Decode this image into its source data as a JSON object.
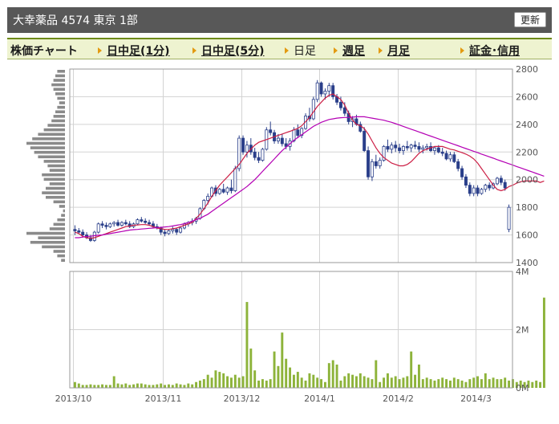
{
  "header": {
    "title": "大幸薬品 4574 東京 1部",
    "refresh_label": "更新"
  },
  "menu": {
    "label": "株価チャート",
    "items": [
      {
        "label": "日中足(1分)",
        "link": true
      },
      {
        "label": "日中足(5分)",
        "link": true
      },
      {
        "label": "日足",
        "link": false
      },
      {
        "label": "週足",
        "link": true
      },
      {
        "label": "月足",
        "link": true
      },
      {
        "label": "証金･信用",
        "link": true
      }
    ]
  },
  "colors": {
    "up": "#ffffff",
    "down": "#2a3f8a",
    "ma_short": "#cc1f45",
    "ma_long": "#b400b4",
    "volume": "#8db33a",
    "grid": "#d3d3d3"
  },
  "chart_data": [
    {
      "type": "candlestick",
      "yticks": [
        1400,
        1600,
        1800,
        2000,
        2200,
        2400,
        2600,
        2800
      ],
      "ylim": [
        1400,
        2800
      ],
      "xticks": [
        {
          "label": "2013/10",
          "index": 0
        },
        {
          "label": "2013/11",
          "index": 23
        },
        {
          "label": "2013/12",
          "index": 43
        },
        {
          "label": "2014/1",
          "index": 63
        },
        {
          "label": "2014/2",
          "index": 83
        },
        {
          "label": "2014/3",
          "index": 103
        }
      ],
      "grid": true,
      "series": [
        {
          "name": "",
          "type": "line",
          "values": [
            1620,
            1610,
            1590,
            1580,
            1575,
            1580,
            1590,
            1600,
            1610,
            1620,
            1630,
            1640,
            1650,
            1660,
            1665,
            1670,
            1672,
            1675,
            1675,
            1670,
            1660,
            1650,
            1645,
            1640,
            1640,
            1645,
            1650,
            1660,
            1670,
            1680,
            1690,
            1720,
            1750,
            1790,
            1830,
            1880,
            1920,
            1960,
            1990,
            2020,
            2050,
            2080,
            2110,
            2150,
            2190,
            2220,
            2250,
            2270,
            2280,
            2290,
            2300,
            2310,
            2320,
            2330,
            2340,
            2350,
            2360,
            2370,
            2390,
            2420,
            2450,
            2490,
            2530,
            2560,
            2590,
            2610,
            2620,
            2600,
            2580,
            2540,
            2480,
            2430,
            2400,
            2390,
            2370,
            2330,
            2280,
            2230,
            2190,
            2160,
            2140,
            2120,
            2110,
            2100,
            2100,
            2110,
            2130,
            2160,
            2190,
            2210,
            2220,
            2230,
            2240,
            2240,
            2240,
            2230,
            2220,
            2215,
            2205,
            2195,
            2185,
            2170,
            2150,
            2120,
            2080,
            2040,
            2000,
            1960,
            1930,
            1920,
            1930,
            1950,
            1960,
            1975,
            1985,
            1990,
            1990,
            1990,
            1990,
            1980,
            1990
          ]
        },
        {
          "name": "",
          "type": "line",
          "values": [
            1580,
            1580,
            1585,
            1590,
            1590,
            1595,
            1598,
            1600,
            1605,
            1610,
            1615,
            1620,
            1625,
            1630,
            1635,
            1638,
            1640,
            1643,
            1645,
            1648,
            1650,
            1653,
            1655,
            1658,
            1660,
            1665,
            1670,
            1675,
            1682,
            1690,
            1700,
            1710,
            1720,
            1735,
            1750,
            1770,
            1790,
            1810,
            1830,
            1850,
            1870,
            1890,
            1910,
            1930,
            1950,
            1975,
            2000,
            2030,
            2060,
            2090,
            2120,
            2150,
            2180,
            2210,
            2235,
            2260,
            2285,
            2305,
            2325,
            2345,
            2365,
            2385,
            2400,
            2415,
            2425,
            2435,
            2440,
            2445,
            2448,
            2450,
            2450,
            2452,
            2455,
            2455,
            2455,
            2450,
            2445,
            2440,
            2435,
            2430,
            2422,
            2415,
            2405,
            2395,
            2385,
            2375,
            2365,
            2355,
            2345,
            2335,
            2325,
            2315,
            2305,
            2295,
            2285,
            2275,
            2265,
            2255,
            2245,
            2235,
            2225,
            2215,
            2205,
            2195,
            2185,
            2175,
            2165,
            2155,
            2145,
            2135,
            2125,
            2115,
            2105,
            2095,
            2085,
            2075,
            2065,
            2055,
            2045,
            2035,
            2025
          ]
        }
      ],
      "candles": [
        [
          1640,
          1670,
          1600,
          1630
        ],
        [
          1630,
          1650,
          1610,
          1620
        ],
        [
          1620,
          1640,
          1580,
          1600
        ],
        [
          1600,
          1620,
          1570,
          1580
        ],
        [
          1580,
          1600,
          1550,
          1560
        ],
        [
          1560,
          1630,
          1550,
          1620
        ],
        [
          1620,
          1690,
          1610,
          1680
        ],
        [
          1680,
          1700,
          1650,
          1670
        ],
        [
          1670,
          1690,
          1640,
          1660
        ],
        [
          1660,
          1690,
          1650,
          1680
        ],
        [
          1680,
          1700,
          1660,
          1690
        ],
        [
          1690,
          1710,
          1660,
          1670
        ],
        [
          1670,
          1700,
          1660,
          1690
        ],
        [
          1690,
          1710,
          1670,
          1680
        ],
        [
          1680,
          1700,
          1650,
          1660
        ],
        [
          1660,
          1690,
          1650,
          1680
        ],
        [
          1680,
          1720,
          1670,
          1710
        ],
        [
          1710,
          1730,
          1690,
          1700
        ],
        [
          1700,
          1720,
          1680,
          1690
        ],
        [
          1690,
          1710,
          1670,
          1680
        ],
        [
          1680,
          1700,
          1650,
          1660
        ],
        [
          1660,
          1680,
          1640,
          1650
        ],
        [
          1650,
          1660,
          1600,
          1620
        ],
        [
          1620,
          1640,
          1590,
          1610
        ],
        [
          1610,
          1640,
          1600,
          1630
        ],
        [
          1630,
          1660,
          1610,
          1640
        ],
        [
          1640,
          1650,
          1600,
          1620
        ],
        [
          1620,
          1660,
          1610,
          1650
        ],
        [
          1650,
          1690,
          1640,
          1680
        ],
        [
          1680,
          1700,
          1660,
          1690
        ],
        [
          1690,
          1720,
          1670,
          1700
        ],
        [
          1700,
          1730,
          1680,
          1720
        ],
        [
          1720,
          1800,
          1710,
          1790
        ],
        [
          1790,
          1860,
          1780,
          1850
        ],
        [
          1850,
          1900,
          1820,
          1880
        ],
        [
          1880,
          1950,
          1870,
          1940
        ],
        [
          1940,
          1960,
          1880,
          1900
        ],
        [
          1900,
          1940,
          1890,
          1930
        ],
        [
          1930,
          1970,
          1900,
          1910
        ],
        [
          1910,
          1950,
          1890,
          1940
        ],
        [
          1940,
          2000,
          1900,
          1920
        ],
        [
          1920,
          2100,
          1910,
          2080
        ],
        [
          2080,
          2320,
          2060,
          2300
        ],
        [
          2300,
          2320,
          2180,
          2200
        ],
        [
          2200,
          2280,
          2160,
          2250
        ],
        [
          2250,
          2300,
          2180,
          2200
        ],
        [
          2200,
          2230,
          2140,
          2160
        ],
        [
          2160,
          2200,
          2120,
          2140
        ],
        [
          2140,
          2230,
          2130,
          2220
        ],
        [
          2220,
          2380,
          2210,
          2360
        ],
        [
          2360,
          2420,
          2320,
          2340
        ],
        [
          2340,
          2360,
          2260,
          2280
        ],
        [
          2280,
          2330,
          2260,
          2300
        ],
        [
          2300,
          2330,
          2240,
          2260
        ],
        [
          2260,
          2300,
          2220,
          2240
        ],
        [
          2240,
          2300,
          2210,
          2280
        ],
        [
          2280,
          2380,
          2270,
          2360
        ],
        [
          2360,
          2400,
          2300,
          2320
        ],
        [
          2320,
          2380,
          2300,
          2370
        ],
        [
          2370,
          2480,
          2360,
          2460
        ],
        [
          2460,
          2520,
          2420,
          2440
        ],
        [
          2440,
          2600,
          2430,
          2580
        ],
        [
          2580,
          2720,
          2560,
          2700
        ],
        [
          2700,
          2710,
          2600,
          2620
        ],
        [
          2620,
          2660,
          2580,
          2640
        ],
        [
          2640,
          2700,
          2600,
          2680
        ],
        [
          2680,
          2700,
          2580,
          2600
        ],
        [
          2600,
          2620,
          2540,
          2560
        ],
        [
          2560,
          2600,
          2500,
          2520
        ],
        [
          2520,
          2560,
          2460,
          2480
        ],
        [
          2480,
          2500,
          2400,
          2420
        ],
        [
          2420,
          2460,
          2380,
          2440
        ],
        [
          2440,
          2470,
          2390,
          2400
        ],
        [
          2400,
          2420,
          2340,
          2350
        ],
        [
          2350,
          2380,
          2200,
          2210
        ],
        [
          2210,
          2240,
          2000,
          2020
        ],
        [
          2020,
          2150,
          1990,
          2130
        ],
        [
          2130,
          2180,
          2080,
          2100
        ],
        [
          2100,
          2160,
          2080,
          2140
        ],
        [
          2140,
          2250,
          2130,
          2240
        ],
        [
          2240,
          2290,
          2200,
          2220
        ],
        [
          2220,
          2270,
          2190,
          2250
        ],
        [
          2250,
          2280,
          2200,
          2230
        ],
        [
          2230,
          2260,
          2190,
          2210
        ],
        [
          2210,
          2250,
          2180,
          2240
        ],
        [
          2240,
          2280,
          2210,
          2230
        ],
        [
          2230,
          2260,
          2200,
          2250
        ],
        [
          2250,
          2280,
          2220,
          2240
        ],
        [
          2240,
          2270,
          2200,
          2220
        ],
        [
          2220,
          2250,
          2190,
          2230
        ],
        [
          2230,
          2260,
          2210,
          2240
        ],
        [
          2240,
          2270,
          2200,
          2210
        ],
        [
          2210,
          2240,
          2180,
          2230
        ],
        [
          2230,
          2250,
          2190,
          2200
        ],
        [
          2200,
          2230,
          2170,
          2190
        ],
        [
          2190,
          2210,
          2140,
          2150
        ],
        [
          2150,
          2200,
          2130,
          2180
        ],
        [
          2180,
          2200,
          2120,
          2130
        ],
        [
          2130,
          2150,
          2060,
          2080
        ],
        [
          2080,
          2100,
          2000,
          2020
        ],
        [
          2020,
          2040,
          1940,
          1960
        ],
        [
          1960,
          1980,
          1880,
          1900
        ],
        [
          1900,
          1960,
          1880,
          1940
        ],
        [
          1940,
          1960,
          1880,
          1900
        ],
        [
          1900,
          1940,
          1890,
          1930
        ],
        [
          1930,
          1970,
          1910,
          1960
        ],
        [
          1960,
          1980,
          1920,
          1940
        ],
        [
          1940,
          1980,
          1930,
          1970
        ],
        [
          1970,
          2020,
          1960,
          2010
        ],
        [
          2010,
          2030,
          1960,
          1980
        ],
        [
          1980,
          2000,
          1920,
          1940
        ],
        [
          1640,
          1820,
          1620,
          1800
        ]
      ]
    },
    {
      "type": "bar",
      "yticks": [
        "0M",
        "2M",
        "4M"
      ],
      "ylim": [
        0,
        4
      ],
      "series": [
        {
          "name": "",
          "values": [
            0.2,
            0.15,
            0.1,
            0.1,
            0.12,
            0.1,
            0.1,
            0.12,
            0.1,
            0.1,
            0.4,
            0.15,
            0.12,
            0.15,
            0.1,
            0.12,
            0.15,
            0.15,
            0.12,
            0.1,
            0.1,
            0.12,
            0.15,
            0.1,
            0.12,
            0.1,
            0.15,
            0.12,
            0.1,
            0.15,
            0.12,
            0.2,
            0.25,
            0.3,
            0.45,
            0.35,
            0.6,
            0.55,
            0.5,
            0.4,
            0.35,
            0.45,
            0.35,
            0.4,
            2.95,
            1.35,
            0.6,
            0.25,
            0.3,
            0.25,
            0.3,
            1.25,
            0.75,
            1.9,
            1.0,
            0.7,
            0.45,
            0.55,
            0.35,
            0.25,
            0.5,
            0.45,
            0.35,
            0.3,
            0.2,
            0.85,
            0.95,
            0.8,
            0.25,
            0.4,
            0.5,
            0.45,
            0.4,
            0.5,
            0.4,
            0.35,
            0.3,
            0.95,
            0.2,
            0.35,
            0.5,
            0.35,
            0.4,
            0.3,
            0.35,
            0.4,
            1.25,
            0.45,
            0.8,
            0.3,
            0.35,
            0.3,
            0.25,
            0.3,
            0.35,
            0.3,
            0.25,
            0.35,
            0.3,
            0.25,
            0.2,
            0.3,
            0.35,
            0.4,
            0.3,
            0.5,
            0.3,
            0.35,
            0.3,
            0.3,
            0.35,
            0.25,
            0.3,
            0.2,
            0.25,
            0.2,
            0.25,
            0.2,
            0.25,
            0.2,
            3.1
          ]
        }
      ]
    },
    {
      "type": "bar",
      "orientation": "horizontal",
      "name": "price-by-volume",
      "values": [
        0.1,
        0.2,
        0.3,
        0.6,
        0.9,
        0.7,
        1.0,
        0.4,
        0.3,
        0.2,
        0.1,
        0.05,
        0.15,
        0.3,
        0.5,
        0.6,
        0.5,
        0.4,
        0.55,
        0.6,
        0.4,
        0.45,
        0.55,
        0.7,
        0.8,
        0.9,
        1.0,
        0.85,
        0.7,
        0.55,
        0.45,
        0.35,
        0.3,
        0.25,
        0.2,
        0.15,
        0.2,
        0.25,
        0.3,
        0.35,
        0.3,
        0.25,
        0.2
      ]
    }
  ]
}
